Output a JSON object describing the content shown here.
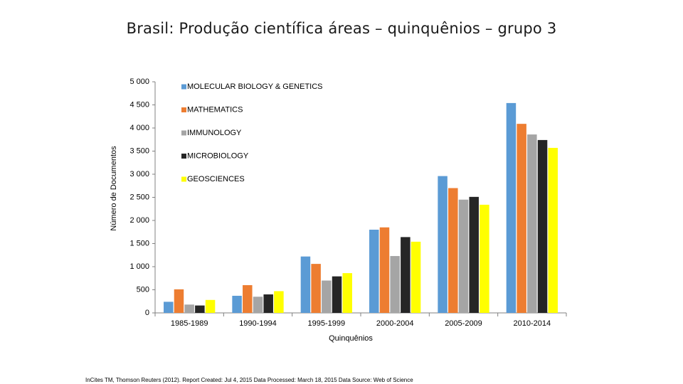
{
  "title": "Brasil: Produção científica áreas – quinquênios – grupo 3",
  "footer": "InCites TM, Thomson Reuters (2012). Report Created: Jul 4, 2015 Data Processed: March 18, 2015 Data Source: Web of Science",
  "chart_data": {
    "type": "bar",
    "xlabel": "Quinquênios",
    "ylabel": "Número de Documentos",
    "ylim": [
      0,
      5000
    ],
    "yticks": [
      0,
      500,
      1000,
      1500,
      2000,
      2500,
      3000,
      3500,
      4000,
      4500,
      5000
    ],
    "ytick_labels": [
      "0",
      "500",
      "1 000",
      "1 500",
      "2 000",
      "2 500",
      "3 000",
      "3 500",
      "4 000",
      "4 500",
      "5 000"
    ],
    "categories": [
      "1985-1989",
      "1990-1994",
      "1995-1999",
      "2000-2004",
      "2005-2009",
      "2010-2014"
    ],
    "legend_position": "top-left",
    "grid": false,
    "series": [
      {
        "name": "MOLECULAR BIOLOGY & GENETICS",
        "color": "#5B9BD5",
        "values": [
          240,
          370,
          1220,
          1800,
          2960,
          4540
        ]
      },
      {
        "name": "MATHEMATICS",
        "color": "#ED7D31",
        "values": [
          510,
          600,
          1060,
          1850,
          2700,
          4090
        ]
      },
      {
        "name": "IMMUNOLOGY",
        "color": "#A5A5A5",
        "values": [
          180,
          350,
          700,
          1230,
          2450,
          3860
        ]
      },
      {
        "name": "MICROBIOLOGY",
        "color": "#262626",
        "values": [
          160,
          400,
          790,
          1640,
          2510,
          3740
        ]
      },
      {
        "name": "GEOSCIENCES",
        "color": "#FFFF00",
        "values": [
          280,
          470,
          860,
          1540,
          2340,
          3570
        ]
      }
    ]
  }
}
